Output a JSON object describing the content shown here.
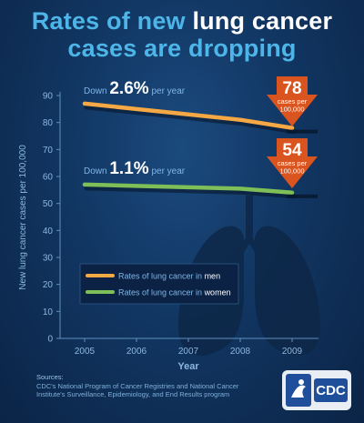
{
  "header": {
    "title_part1": "Rates of new ",
    "title_highlight": "lung cancer",
    "title_part2": "cases are dropping"
  },
  "chart_data": {
    "type": "line",
    "x": [
      2005,
      2006,
      2007,
      2008,
      2009
    ],
    "xlabel": "Year",
    "ylabel": "New lung cancer cases per 100,000",
    "ylim": [
      0,
      90
    ],
    "yticks": [
      0,
      10,
      20,
      30,
      40,
      50,
      60,
      70,
      80,
      90
    ],
    "grid": false,
    "legend_position": "center-left",
    "series": [
      {
        "name": "Rates of lung cancer in men",
        "legend_prefix": "Rates of lung cancer in ",
        "legend_highlight": "men",
        "color": "#f5a843",
        "values": [
          87,
          85,
          83,
          81,
          78
        ],
        "trend_prefix": "Down ",
        "trend_value": "2.6%",
        "trend_suffix": " per year",
        "end_value": "78",
        "end_label": "cases per 100,000"
      },
      {
        "name": "Rates of lung cancer in women",
        "legend_prefix": "Rates of lung cancer in ",
        "legend_highlight": "women",
        "color": "#7fbf58",
        "values": [
          57,
          56.5,
          56,
          55.5,
          54
        ],
        "trend_prefix": "Down ",
        "trend_value": "1.1%",
        "trend_suffix": " per year",
        "end_value": "54",
        "end_label": "cases per 100,000"
      }
    ]
  },
  "footer": {
    "sources_label": "Sources:",
    "sources_text": "CDC's National Program of Cancer Registries and National Cancer Institute's Surveillance, Epidemiology, and End Results program",
    "logo_text": "CDC"
  },
  "colors": {
    "background": "#0f2b4f",
    "title": "#4db5e8",
    "axis_text": "#8cb8e0",
    "arrow": "#d9541f"
  }
}
